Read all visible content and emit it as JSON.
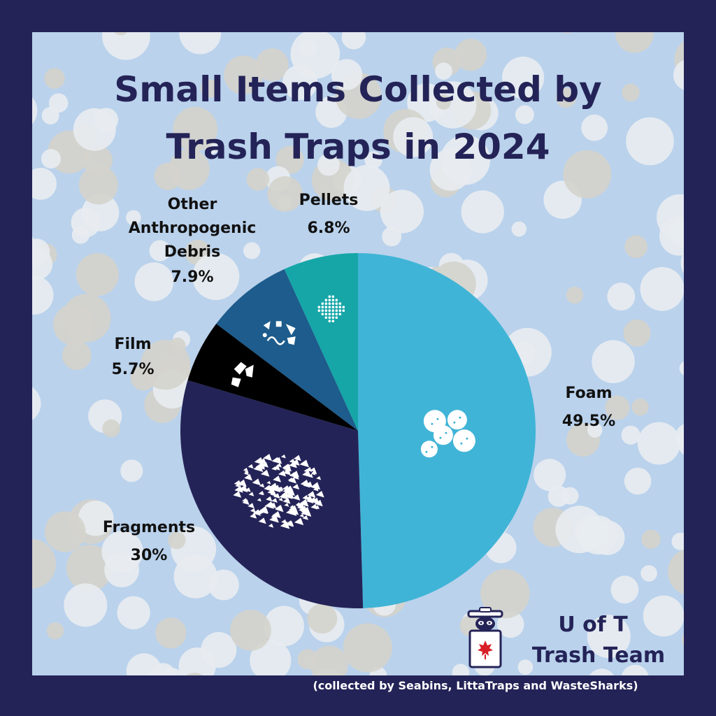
{
  "colors": {
    "frame": "#242357",
    "foam": "#40b4d6",
    "fragments": "#242357",
    "film": "#000000",
    "other": "#1d5c8c",
    "pellets": "#16a6a8",
    "bg_water": "#8fb6e0",
    "bg_tint": "#dfe9f6"
  },
  "title_lines": [
    "Small Items Collected by",
    "Trash Traps in 2024"
  ],
  "chart_data": {
    "type": "pie",
    "title": "Small Items Collected by Trash Traps in 2024",
    "slices": [
      {
        "label_lines": [
          "Foam"
        ],
        "label": "Foam",
        "value": 49.5,
        "value_label": "49.5%",
        "icon": "foam-icon"
      },
      {
        "label_lines": [
          "Fragments"
        ],
        "label": "Fragments",
        "value": 30,
        "value_label": "30%",
        "icon": "fragments-icon"
      },
      {
        "label_lines": [
          "Film"
        ],
        "label": "Film",
        "value": 5.7,
        "value_label": "5.7%",
        "icon": "film-icon"
      },
      {
        "label_lines": [
          "Other",
          "Anthropogenic",
          "Debris"
        ],
        "label": "Other Anthropogenic Debris",
        "value": 7.9,
        "value_label": "7.9%",
        "icon": "debris-icon"
      },
      {
        "label_lines": [
          "Pellets"
        ],
        "label": "Pellets",
        "value": 6.8,
        "value_label": "6.8%",
        "icon": "pellets-icon"
      }
    ],
    "start": "12 o'clock",
    "direction": "clockwise",
    "legend": "none"
  },
  "team": {
    "line1": "U of T",
    "line2": "Trash Team",
    "logo_icon": "raccoon-trash-can-icon"
  },
  "footnote": "(collected by Seabins, LittaTraps and WasteSharks)"
}
